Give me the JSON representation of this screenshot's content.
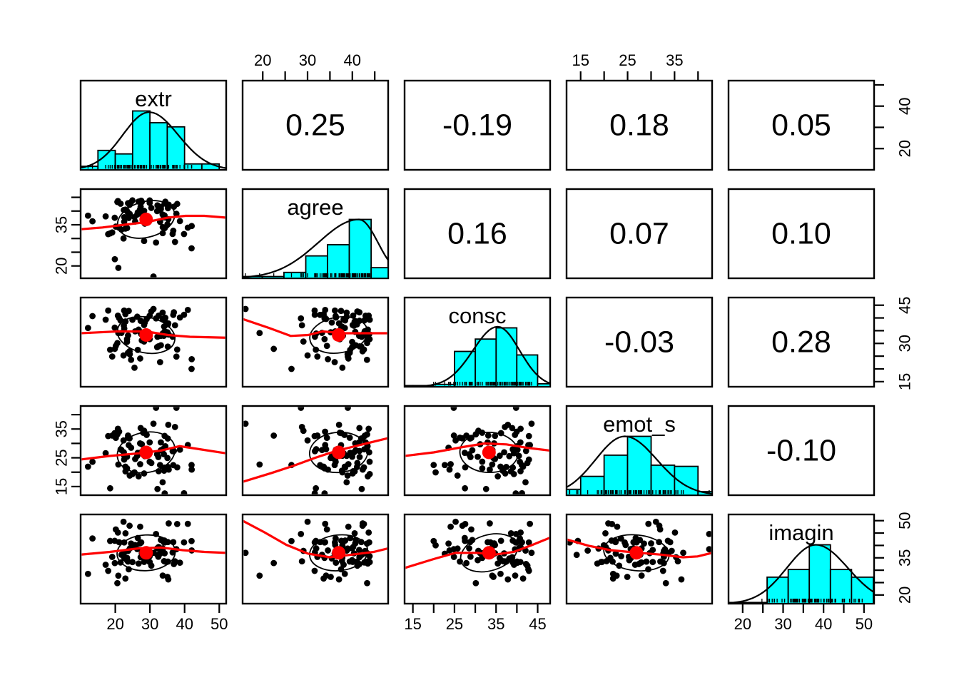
{
  "chart_data": {
    "type": "scatterplot-matrix",
    "style": "R pairs.panels (psych): diagonal histograms with density curves, upper-triangle correlation values, lower-triangle scatterplots with loess smooth, correlation ellipse and mean point",
    "n_variables": 5,
    "variables": [
      {
        "name": "extr",
        "range": [
          10,
          52
        ],
        "x_side": "bottom",
        "y_side": "right",
        "ticks": [
          20,
          30,
          40,
          50
        ],
        "x_labels": [
          20,
          30,
          40,
          50
        ],
        "y_labels": [
          20,
          40
        ],
        "hist": {
          "edges": [
            0,
            0.119,
            0.238,
            0.357,
            0.476,
            0.595,
            0.714,
            0.833,
            0.952
          ],
          "heights": [
            0.06,
            0.33,
            0.27,
            1.0,
            0.8,
            0.73,
            0.1,
            0.1
          ]
        },
        "density": {
          "peak": 0.47,
          "s_left": 0.18,
          "s_right": 0.2,
          "height": 0.98
        },
        "dist": {
          "mean": 0.45,
          "sd": 0.16,
          "skew": -0.3
        }
      },
      {
        "name": "agree",
        "range": [
          15.5,
          48
        ],
        "x_side": "top",
        "y_side": "left",
        "ticks": [
          20,
          25,
          30,
          35,
          40,
          45
        ],
        "x_labels": [
          20,
          30,
          40
        ],
        "y_labels": [
          20,
          35
        ],
        "hist": {
          "edges": [
            0,
            0.135,
            0.284,
            0.434,
            0.583,
            0.733,
            0.883,
            1.0
          ],
          "heights": [
            0.03,
            0.03,
            0.1,
            0.38,
            0.57,
            1.0,
            0.18
          ]
        },
        "density": {
          "peak": 0.8,
          "s_left": 0.28,
          "s_right": 0.13,
          "height": 1.0
        },
        "dist": {
          "mean": 0.66,
          "sd": 0.16,
          "skew": -0.9
        }
      },
      {
        "name": "consc",
        "range": [
          13,
          48
        ],
        "x_side": "bottom",
        "y_side": "right",
        "ticks": [
          15,
          20,
          25,
          30,
          35,
          40,
          45
        ],
        "x_labels": [
          15,
          25,
          35,
          45
        ],
        "y_labels": [
          15,
          30,
          45
        ],
        "hist": {
          "edges": [
            0,
            0.057,
            0.2,
            0.343,
            0.486,
            0.629,
            0.771,
            0.914,
            1.0
          ],
          "heights": [
            0.02,
            0.02,
            0.04,
            0.6,
            0.81,
            1.0,
            0.54,
            0.05
          ]
        },
        "density": {
          "peak": 0.64,
          "s_left": 0.17,
          "s_right": 0.15,
          "height": 1.02
        },
        "dist": {
          "mean": 0.58,
          "sd": 0.16,
          "skew": -0.5
        }
      },
      {
        "name": "emot_s",
        "range": [
          12,
          43
        ],
        "x_side": "top",
        "y_side": "left",
        "ticks": [
          15,
          20,
          25,
          30,
          35,
          40
        ],
        "x_labels": [
          15,
          25,
          35
        ],
        "y_labels": [
          15,
          25,
          35
        ],
        "hist": {
          "edges": [
            0,
            0.097,
            0.258,
            0.419,
            0.581,
            0.742,
            0.903,
            1.0
          ],
          "heights": [
            0.1,
            0.32,
            0.68,
            1.0,
            0.51,
            0.49,
            0.06
          ]
        },
        "density": {
          "peak": 0.4,
          "s_left": 0.2,
          "s_right": 0.22,
          "height": 1.0
        },
        "dist": {
          "mean": 0.48,
          "sd": 0.18,
          "skew": 0
        }
      },
      {
        "name": "imagin",
        "range": [
          16.5,
          52.5
        ],
        "x_side": "bottom",
        "y_side": "right",
        "ticks": [
          20,
          25,
          30,
          35,
          40,
          45,
          50
        ],
        "x_labels": [
          20,
          30,
          40,
          50
        ],
        "y_labels": [
          20,
          35,
          50
        ],
        "hist": {
          "edges": [
            0,
            0.265,
            0.41,
            0.555,
            0.7,
            0.845,
            0.995
          ],
          "heights": [
            0.02,
            0.45,
            0.58,
            1.0,
            0.58,
            0.45
          ]
        },
        "density": {
          "peak": 0.6,
          "s_left": 0.2,
          "s_right": 0.22,
          "height": 1.0
        },
        "dist": {
          "mean": 0.57,
          "sd": 0.16,
          "skew": -0.1
        }
      }
    ],
    "correlations": [
      {
        "x": "agree",
        "y": "extr",
        "r": "0.25"
      },
      {
        "x": "consc",
        "y": "extr",
        "r": "-0.19"
      },
      {
        "x": "emot_s",
        "y": "extr",
        "r": "0.18"
      },
      {
        "x": "imagin",
        "y": "extr",
        "r": "0.05"
      },
      {
        "x": "consc",
        "y": "agree",
        "r": "0.16"
      },
      {
        "x": "emot_s",
        "y": "agree",
        "r": "0.07"
      },
      {
        "x": "imagin",
        "y": "agree",
        "r": "0.10"
      },
      {
        "x": "emot_s",
        "y": "consc",
        "r": "-0.03"
      },
      {
        "x": "imagin",
        "y": "consc",
        "r": "0.28"
      },
      {
        "x": "imagin",
        "y": "emot_s",
        "r": "-0.10"
      }
    ],
    "trends": {
      "1_0": [
        [
          0,
          0.55
        ],
        [
          0.15,
          0.57
        ],
        [
          0.3,
          0.6
        ],
        [
          0.45,
          0.63
        ],
        [
          0.6,
          0.68
        ],
        [
          0.72,
          0.7
        ],
        [
          0.85,
          0.7
        ],
        [
          1,
          0.68
        ]
      ],
      "2_0": [
        [
          0,
          0.6
        ],
        [
          0.25,
          0.62
        ],
        [
          0.45,
          0.62
        ],
        [
          0.6,
          0.58
        ],
        [
          0.75,
          0.56
        ],
        [
          1,
          0.55
        ]
      ],
      "3_0": [
        [
          0,
          0.4
        ],
        [
          0.2,
          0.44
        ],
        [
          0.4,
          0.47
        ],
        [
          0.55,
          0.5
        ],
        [
          0.68,
          0.55
        ],
        [
          0.8,
          0.52
        ],
        [
          1,
          0.47
        ]
      ],
      "4_0": [
        [
          0,
          0.55
        ],
        [
          0.2,
          0.58
        ],
        [
          0.4,
          0.62
        ],
        [
          0.55,
          0.63
        ],
        [
          0.7,
          0.6
        ],
        [
          0.85,
          0.58
        ],
        [
          1,
          0.57
        ]
      ],
      "2_1": [
        [
          0,
          0.76
        ],
        [
          0.18,
          0.66
        ],
        [
          0.33,
          0.57
        ],
        [
          0.45,
          0.58
        ],
        [
          0.55,
          0.62
        ],
        [
          0.7,
          0.6
        ],
        [
          0.85,
          0.6
        ],
        [
          1,
          0.6
        ]
      ],
      "3_1": [
        [
          0,
          0.15
        ],
        [
          0.2,
          0.25
        ],
        [
          0.35,
          0.33
        ],
        [
          0.5,
          0.42
        ],
        [
          0.65,
          0.5
        ],
        [
          0.8,
          0.56
        ],
        [
          1,
          0.64
        ]
      ],
      "4_1": [
        [
          0,
          0.93
        ],
        [
          0.15,
          0.8
        ],
        [
          0.3,
          0.66
        ],
        [
          0.45,
          0.56
        ],
        [
          0.6,
          0.52
        ],
        [
          0.75,
          0.55
        ],
        [
          0.9,
          0.58
        ],
        [
          1,
          0.62
        ]
      ],
      "3_2": [
        [
          0,
          0.44
        ],
        [
          0.2,
          0.48
        ],
        [
          0.4,
          0.54
        ],
        [
          0.55,
          0.58
        ],
        [
          0.7,
          0.57
        ],
        [
          0.85,
          0.53
        ],
        [
          1,
          0.5
        ]
      ],
      "4_2": [
        [
          0,
          0.4
        ],
        [
          0.2,
          0.5
        ],
        [
          0.35,
          0.57
        ],
        [
          0.5,
          0.57
        ],
        [
          0.62,
          0.55
        ],
        [
          0.75,
          0.58
        ],
        [
          0.88,
          0.66
        ],
        [
          1,
          0.74
        ]
      ],
      "4_3": [
        [
          0,
          0.72
        ],
        [
          0.15,
          0.65
        ],
        [
          0.3,
          0.6
        ],
        [
          0.5,
          0.57
        ],
        [
          0.65,
          0.55
        ],
        [
          0.8,
          0.52
        ],
        [
          0.9,
          0.53
        ],
        [
          1,
          0.57
        ]
      ]
    },
    "scatter": {
      "n": 82,
      "seed": 11,
      "point_radius": 4.4,
      "ellipse_scale": 1.25,
      "center_dot_radius": 9.5
    },
    "axes_layout": {
      "top_label_columns": [
        "agree",
        "emot_s"
      ],
      "bottom_label_columns": [
        "extr",
        "consc",
        "imagin"
      ],
      "left_label_rows": [
        "agree",
        "emot_s"
      ],
      "right_label_rows": [
        "extr",
        "consc",
        "imagin"
      ]
    }
  },
  "colors": {
    "background": "#FFFFFF",
    "histogram_fill": "#00FFFF",
    "histogram_stroke": "#000000",
    "density_curve": "#000000",
    "trend_line": "#FF0000",
    "center_dot": "#FF0000",
    "ellipse": "#000000",
    "points": "#000000",
    "panel_border": "#000000",
    "text": "#000000"
  }
}
